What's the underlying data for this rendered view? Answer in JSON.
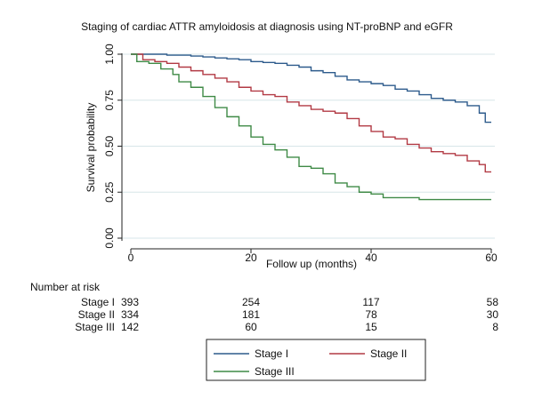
{
  "chart_data": {
    "type": "line",
    "subtype": "kaplan-meier step",
    "title": "Staging of cardiac ATTR amyloidosis at diagnosis using NT-proBNP and eGFR",
    "xlabel": "Follow up (months)",
    "ylabel": "Survival probability",
    "xlim": [
      0,
      60
    ],
    "ylim": [
      0,
      1
    ],
    "xticks": [
      0,
      20,
      40,
      60
    ],
    "yticks": [
      0,
      0.25,
      0.5,
      0.75,
      1
    ],
    "xtick_labels": [
      "0",
      "20",
      "40",
      "60"
    ],
    "ytick_labels": [
      "0.00",
      "0.25",
      "0.50",
      "0.75",
      "1.00"
    ],
    "grid": "horizontal",
    "legend_position": "bottom",
    "series": [
      {
        "name": "Stage I",
        "color": "#2d5b8c",
        "points": [
          [
            0,
            1
          ],
          [
            6,
            0.995
          ],
          [
            10,
            0.99
          ],
          [
            12,
            0.985
          ],
          [
            14,
            0.98
          ],
          [
            16,
            0.975
          ],
          [
            18,
            0.97
          ],
          [
            20,
            0.96
          ],
          [
            22,
            0.955
          ],
          [
            24,
            0.95
          ],
          [
            26,
            0.94
          ],
          [
            28,
            0.93
          ],
          [
            30,
            0.91
          ],
          [
            32,
            0.9
          ],
          [
            34,
            0.88
          ],
          [
            36,
            0.86
          ],
          [
            38,
            0.85
          ],
          [
            40,
            0.84
          ],
          [
            42,
            0.83
          ],
          [
            44,
            0.81
          ],
          [
            46,
            0.8
          ],
          [
            48,
            0.78
          ],
          [
            50,
            0.76
          ],
          [
            52,
            0.75
          ],
          [
            54,
            0.74
          ],
          [
            56,
            0.72
          ],
          [
            58,
            0.68
          ],
          [
            59,
            0.63
          ],
          [
            60,
            0.63
          ]
        ]
      },
      {
        "name": "Stage II",
        "color": "#b23a44",
        "points": [
          [
            0,
            1
          ],
          [
            2,
            0.97
          ],
          [
            4,
            0.96
          ],
          [
            6,
            0.95
          ],
          [
            8,
            0.93
          ],
          [
            10,
            0.91
          ],
          [
            12,
            0.89
          ],
          [
            14,
            0.87
          ],
          [
            16,
            0.85
          ],
          [
            18,
            0.82
          ],
          [
            20,
            0.8
          ],
          [
            22,
            0.78
          ],
          [
            24,
            0.77
          ],
          [
            26,
            0.74
          ],
          [
            28,
            0.72
          ],
          [
            30,
            0.7
          ],
          [
            32,
            0.69
          ],
          [
            34,
            0.68
          ],
          [
            36,
            0.65
          ],
          [
            38,
            0.61
          ],
          [
            40,
            0.58
          ],
          [
            42,
            0.55
          ],
          [
            44,
            0.54
          ],
          [
            46,
            0.51
          ],
          [
            48,
            0.49
          ],
          [
            50,
            0.47
          ],
          [
            52,
            0.46
          ],
          [
            54,
            0.45
          ],
          [
            56,
            0.42
          ],
          [
            58,
            0.4
          ],
          [
            59,
            0.36
          ],
          [
            60,
            0.36
          ]
        ]
      },
      {
        "name": "Stage III",
        "color": "#3f8a46",
        "points": [
          [
            0,
            1
          ],
          [
            1,
            0.96
          ],
          [
            3,
            0.95
          ],
          [
            5,
            0.92
          ],
          [
            7,
            0.89
          ],
          [
            8,
            0.85
          ],
          [
            10,
            0.82
          ],
          [
            12,
            0.77
          ],
          [
            14,
            0.71
          ],
          [
            16,
            0.66
          ],
          [
            18,
            0.61
          ],
          [
            20,
            0.55
          ],
          [
            22,
            0.51
          ],
          [
            24,
            0.48
          ],
          [
            26,
            0.44
          ],
          [
            28,
            0.39
          ],
          [
            30,
            0.38
          ],
          [
            32,
            0.35
          ],
          [
            34,
            0.3
          ],
          [
            36,
            0.28
          ],
          [
            38,
            0.25
          ],
          [
            40,
            0.24
          ],
          [
            42,
            0.22
          ],
          [
            44,
            0.22
          ],
          [
            46,
            0.22
          ],
          [
            48,
            0.21
          ],
          [
            52,
            0.21
          ],
          [
            56,
            0.21
          ],
          [
            60,
            0.21
          ]
        ]
      }
    ],
    "risk_table": {
      "heading": "Number at risk",
      "times": [
        0,
        20,
        40,
        60
      ],
      "rows": [
        {
          "label": "Stage I",
          "values": [
            "393",
            "254",
            "117",
            "58"
          ]
        },
        {
          "label": "Stage II",
          "values": [
            "334",
            "181",
            "78",
            "30"
          ]
        },
        {
          "label": "Stage III",
          "values": [
            "142",
            "60",
            "15",
            "8"
          ]
        }
      ]
    }
  }
}
